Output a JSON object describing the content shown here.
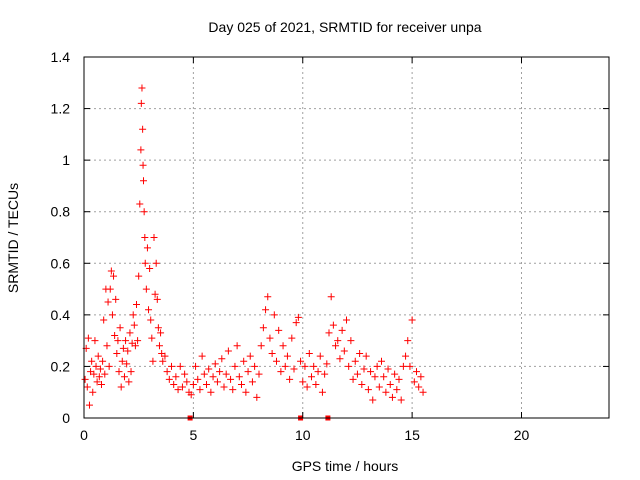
{
  "chart_data": {
    "type": "scatter",
    "title": "Day 025 of 2021, SRMTID for receiver unpa",
    "xlabel": "GPS time / hours",
    "ylabel": "SRMTID / TECUs",
    "xlim": [
      0,
      24
    ],
    "ylim": [
      0,
      1.4
    ],
    "x_ticks": [
      0,
      5,
      10,
      15,
      20
    ],
    "y_ticks": [
      0,
      0.2,
      0.4,
      0.6,
      0.8,
      1,
      1.2,
      1.4
    ],
    "x_tick_labels": [
      "0",
      "5",
      "10",
      "15",
      "20"
    ],
    "y_tick_labels": [
      "0",
      "0.2",
      "0.4",
      "0.6",
      "0.8",
      "1",
      "1.2",
      "1.4"
    ],
    "grid": true,
    "series_color": "#ff0000",
    "marker": "plus",
    "series": [
      {
        "name": "SRMTID",
        "points": [
          [
            0.05,
            0.15
          ],
          [
            0.1,
            0.27
          ],
          [
            0.15,
            0.12
          ],
          [
            0.2,
            0.31
          ],
          [
            0.25,
            0.05
          ],
          [
            0.3,
            0.18
          ],
          [
            0.35,
            0.22
          ],
          [
            0.4,
            0.1
          ],
          [
            0.45,
            0.17
          ],
          [
            0.5,
            0.3
          ],
          [
            0.55,
            0.2
          ],
          [
            0.6,
            0.14
          ],
          [
            0.65,
            0.24
          ],
          [
            0.7,
            0.16
          ],
          [
            0.75,
            0.19
          ],
          [
            0.8,
            0.13
          ],
          [
            0.85,
            0.22
          ],
          [
            0.9,
            0.38
          ],
          [
            0.95,
            0.17
          ],
          [
            1.0,
            0.5
          ],
          [
            1.05,
            0.28
          ],
          [
            1.1,
            0.45
          ],
          [
            1.15,
            0.2
          ],
          [
            1.2,
            0.5
          ],
          [
            1.25,
            0.57
          ],
          [
            1.3,
            0.4
          ],
          [
            1.35,
            0.55
          ],
          [
            1.4,
            0.32
          ],
          [
            1.45,
            0.46
          ],
          [
            1.5,
            0.25
          ],
          [
            1.55,
            0.3
          ],
          [
            1.6,
            0.18
          ],
          [
            1.65,
            0.35
          ],
          [
            1.7,
            0.12
          ],
          [
            1.75,
            0.22
          ],
          [
            1.8,
            0.27
          ],
          [
            1.85,
            0.16
          ],
          [
            1.9,
            0.3
          ],
          [
            1.95,
            0.21
          ],
          [
            2.0,
            0.26
          ],
          [
            2.05,
            0.14
          ],
          [
            2.1,
            0.33
          ],
          [
            2.15,
            0.18
          ],
          [
            2.2,
            0.29
          ],
          [
            2.25,
            0.4
          ],
          [
            2.3,
            0.36
          ],
          [
            2.35,
            0.28
          ],
          [
            2.4,
            0.44
          ],
          [
            2.45,
            0.3
          ],
          [
            2.5,
            0.55
          ],
          [
            2.55,
            0.83
          ],
          [
            2.6,
            1.04
          ],
          [
            2.62,
            1.22
          ],
          [
            2.65,
            1.28
          ],
          [
            2.68,
            1.12
          ],
          [
            2.7,
            0.98
          ],
          [
            2.72,
            0.92
          ],
          [
            2.75,
            0.8
          ],
          [
            2.78,
            0.7
          ],
          [
            2.8,
            0.6
          ],
          [
            2.85,
            0.5
          ],
          [
            2.9,
            0.66
          ],
          [
            2.95,
            0.42
          ],
          [
            3.0,
            0.58
          ],
          [
            3.05,
            0.38
          ],
          [
            3.1,
            0.31
          ],
          [
            3.15,
            0.22
          ],
          [
            3.2,
            0.7
          ],
          [
            3.25,
            0.48
          ],
          [
            3.3,
            0.6
          ],
          [
            3.35,
            0.46
          ],
          [
            3.4,
            0.35
          ],
          [
            3.45,
            0.28
          ],
          [
            3.5,
            0.33
          ],
          [
            3.55,
            0.25
          ],
          [
            3.6,
            0.22
          ],
          [
            3.7,
            0.24
          ],
          [
            3.8,
            0.18
          ],
          [
            3.9,
            0.15
          ],
          [
            4.0,
            0.2
          ],
          [
            4.1,
            0.13
          ],
          [
            4.2,
            0.16
          ],
          [
            4.3,
            0.11
          ],
          [
            4.4,
            0.2
          ],
          [
            4.5,
            0.12
          ],
          [
            4.6,
            0.17
          ],
          [
            4.7,
            0.14
          ],
          [
            4.8,
            0.1
          ],
          [
            4.9,
            0.09
          ],
          [
            5.0,
            0.13
          ],
          [
            5.1,
            0.2
          ],
          [
            5.2,
            0.15
          ],
          [
            5.3,
            0.11
          ],
          [
            5.4,
            0.24
          ],
          [
            5.5,
            0.17
          ],
          [
            5.6,
            0.13
          ],
          [
            5.7,
            0.19
          ],
          [
            5.8,
            0.1
          ],
          [
            5.9,
            0.16
          ],
          [
            6.0,
            0.21
          ],
          [
            6.1,
            0.14
          ],
          [
            6.2,
            0.18
          ],
          [
            6.3,
            0.23
          ],
          [
            6.4,
            0.12
          ],
          [
            6.5,
            0.17
          ],
          [
            6.6,
            0.26
          ],
          [
            6.7,
            0.15
          ],
          [
            6.8,
            0.11
          ],
          [
            6.9,
            0.2
          ],
          [
            7.0,
            0.28
          ],
          [
            7.1,
            0.16
          ],
          [
            7.2,
            0.13
          ],
          [
            7.3,
            0.22
          ],
          [
            7.4,
            0.1
          ],
          [
            7.5,
            0.18
          ],
          [
            7.6,
            0.24
          ],
          [
            7.7,
            0.14
          ],
          [
            7.8,
            0.2
          ],
          [
            7.9,
            0.08
          ],
          [
            8.0,
            0.17
          ],
          [
            8.1,
            0.28
          ],
          [
            8.2,
            0.35
          ],
          [
            8.3,
            0.42
          ],
          [
            8.4,
            0.47
          ],
          [
            8.5,
            0.31
          ],
          [
            8.6,
            0.25
          ],
          [
            8.7,
            0.4
          ],
          [
            8.8,
            0.22
          ],
          [
            8.9,
            0.34
          ],
          [
            9.0,
            0.18
          ],
          [
            9.1,
            0.28
          ],
          [
            9.2,
            0.2
          ],
          [
            9.3,
            0.24
          ],
          [
            9.4,
            0.15
          ],
          [
            9.5,
            0.31
          ],
          [
            9.6,
            0.19
          ],
          [
            9.7,
            0.37
          ],
          [
            9.8,
            0.39
          ],
          [
            9.9,
            0.22
          ],
          [
            10.0,
            0.14
          ],
          [
            10.1,
            0.2
          ],
          [
            10.2,
            0.12
          ],
          [
            10.3,
            0.25
          ],
          [
            10.4,
            0.16
          ],
          [
            10.5,
            0.2
          ],
          [
            10.6,
            0.13
          ],
          [
            10.7,
            0.18
          ],
          [
            10.8,
            0.24
          ],
          [
            10.9,
            0.1
          ],
          [
            11.0,
            0.17
          ],
          [
            11.1,
            0.21
          ],
          [
            11.2,
            0.33
          ],
          [
            11.3,
            0.47
          ],
          [
            11.4,
            0.36
          ],
          [
            11.5,
            0.28
          ],
          [
            11.6,
            0.3
          ],
          [
            11.7,
            0.23
          ],
          [
            11.8,
            0.34
          ],
          [
            11.9,
            0.26
          ],
          [
            12.0,
            0.38
          ],
          [
            12.1,
            0.2
          ],
          [
            12.2,
            0.3
          ],
          [
            12.3,
            0.15
          ],
          [
            12.4,
            0.22
          ],
          [
            12.5,
            0.17
          ],
          [
            12.6,
            0.25
          ],
          [
            12.7,
            0.13
          ],
          [
            12.8,
            0.19
          ],
          [
            12.9,
            0.24
          ],
          [
            13.0,
            0.11
          ],
          [
            13.1,
            0.18
          ],
          [
            13.2,
            0.07
          ],
          [
            13.3,
            0.16
          ],
          [
            13.4,
            0.2
          ],
          [
            13.5,
            0.12
          ],
          [
            13.6,
            0.22
          ],
          [
            13.7,
            0.16
          ],
          [
            13.8,
            0.1
          ],
          [
            13.9,
            0.19
          ],
          [
            14.0,
            0.13
          ],
          [
            14.1,
            0.08
          ],
          [
            14.2,
            0.17
          ],
          [
            14.3,
            0.11
          ],
          [
            14.4,
            0.15
          ],
          [
            14.5,
            0.07
          ],
          [
            14.6,
            0.2
          ],
          [
            14.7,
            0.24
          ],
          [
            14.8,
            0.3
          ],
          [
            14.9,
            0.2
          ],
          [
            15.0,
            0.38
          ],
          [
            15.1,
            0.14
          ],
          [
            15.2,
            0.18
          ],
          [
            15.3,
            0.12
          ],
          [
            15.4,
            0.16
          ],
          [
            15.5,
            0.1
          ]
        ]
      }
    ],
    "axis_markers_x": [
      4.85,
      9.9,
      11.15
    ]
  }
}
